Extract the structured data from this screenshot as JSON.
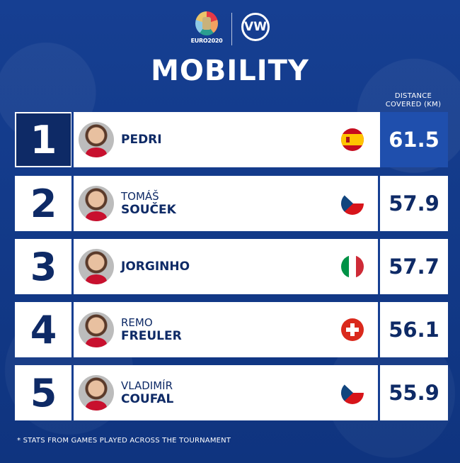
{
  "header": {
    "tournament_logo_text": "EURO2020",
    "sponsor_logo_text": "VW",
    "title": "MOBILITY",
    "column_label": "DISTANCE COVERED (KM)"
  },
  "rows": [
    {
      "rank": "1",
      "first_name": "",
      "last_name": "PEDRI",
      "flag": "spain-flag-icon",
      "value": "61.5"
    },
    {
      "rank": "2",
      "first_name": "TOMÁŠ",
      "last_name": "SOUČEK",
      "flag": "czech-flag-icon",
      "value": "57.9"
    },
    {
      "rank": "3",
      "first_name": "",
      "last_name": "JORGINHO",
      "flag": "italy-flag-icon",
      "value": "57.7"
    },
    {
      "rank": "4",
      "first_name": "REMO",
      "last_name": "FREULER",
      "flag": "switzerland-flag-icon",
      "value": "56.1"
    },
    {
      "rank": "5",
      "first_name": "VLADIMÍR",
      "last_name": "COUFAL",
      "flag": "czech-flag-icon",
      "value": "55.9"
    }
  ],
  "footnote": "* STATS FROM GAMES PLAYED ACROSS THE TOURNAMENT",
  "colors": {
    "background": "#123a8a",
    "navy": "#0e2a66",
    "highlight": "#1f4fad"
  }
}
